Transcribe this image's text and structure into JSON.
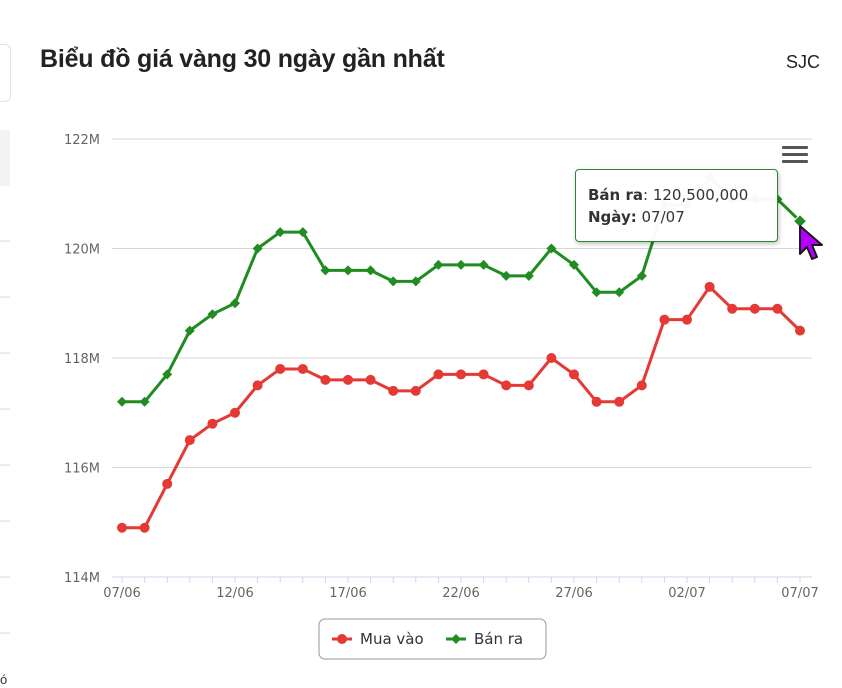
{
  "header": {
    "title": "Biểu đồ giá vàng 30 ngày gần nhất",
    "brand": "SJC"
  },
  "left_edge": {
    "char": "ó"
  },
  "tooltip": {
    "series_label": "Bán ra",
    "value": "120,500,000",
    "date_label": "Ngày:",
    "date": "07/07"
  },
  "icons": {
    "menu": "hamburger-menu-icon",
    "cursor": "mouse-pointer-icon"
  },
  "colors": {
    "buy": "#e53935",
    "sell": "#218c21",
    "grid": "#d6d6d6",
    "axis": "#ccd6eb"
  },
  "chart_data": {
    "type": "line",
    "x": [
      "07/06",
      "08/06",
      "09/06",
      "10/06",
      "11/06",
      "12/06",
      "13/06",
      "14/06",
      "15/06",
      "16/06",
      "17/06",
      "18/06",
      "19/06",
      "20/06",
      "21/06",
      "22/06",
      "23/06",
      "24/06",
      "25/06",
      "26/06",
      "27/06",
      "28/06",
      "29/06",
      "30/06",
      "01/07",
      "02/07",
      "03/07",
      "04/07",
      "05/07",
      "06/07",
      "07/07"
    ],
    "x_tick_labels": [
      "07/06",
      "12/06",
      "17/06",
      "22/06",
      "27/06",
      "02/07",
      "07/07"
    ],
    "y_tick_labels": [
      "114M",
      "116M",
      "118M",
      "120M",
      "122M"
    ],
    "ylim": [
      114000000,
      122000000
    ],
    "title": "",
    "xlabel": "",
    "ylabel": "",
    "series": [
      {
        "name": "Mua vào",
        "color": "#e53935",
        "marker": "circle",
        "values": [
          114900000,
          114900000,
          115700000,
          116500000,
          116800000,
          117000000,
          117500000,
          117800000,
          117800000,
          117600000,
          117600000,
          117600000,
          117400000,
          117400000,
          117700000,
          117700000,
          117700000,
          117500000,
          117500000,
          118000000,
          117700000,
          117200000,
          117200000,
          117500000,
          118700000,
          118700000,
          119300000,
          118900000,
          118900000,
          118900000,
          118500000
        ]
      },
      {
        "name": "Bán ra",
        "color": "#218c21",
        "marker": "diamond",
        "values": [
          117200000,
          117200000,
          117700000,
          118500000,
          118800000,
          119000000,
          120000000,
          120300000,
          120300000,
          119600000,
          119600000,
          119600000,
          119400000,
          119400000,
          119700000,
          119700000,
          119700000,
          119500000,
          119500000,
          120000000,
          119700000,
          119200000,
          119200000,
          119500000,
          120800000,
          120800000,
          121300000,
          120900000,
          120900000,
          120900000,
          120500000
        ]
      }
    ],
    "legend": {
      "position": "bottom-center",
      "items": [
        "Mua vào",
        "Bán ra"
      ]
    },
    "grid": true,
    "highlighted_point": {
      "series": "Bán ra",
      "x": "07/07",
      "value": 120500000
    }
  }
}
